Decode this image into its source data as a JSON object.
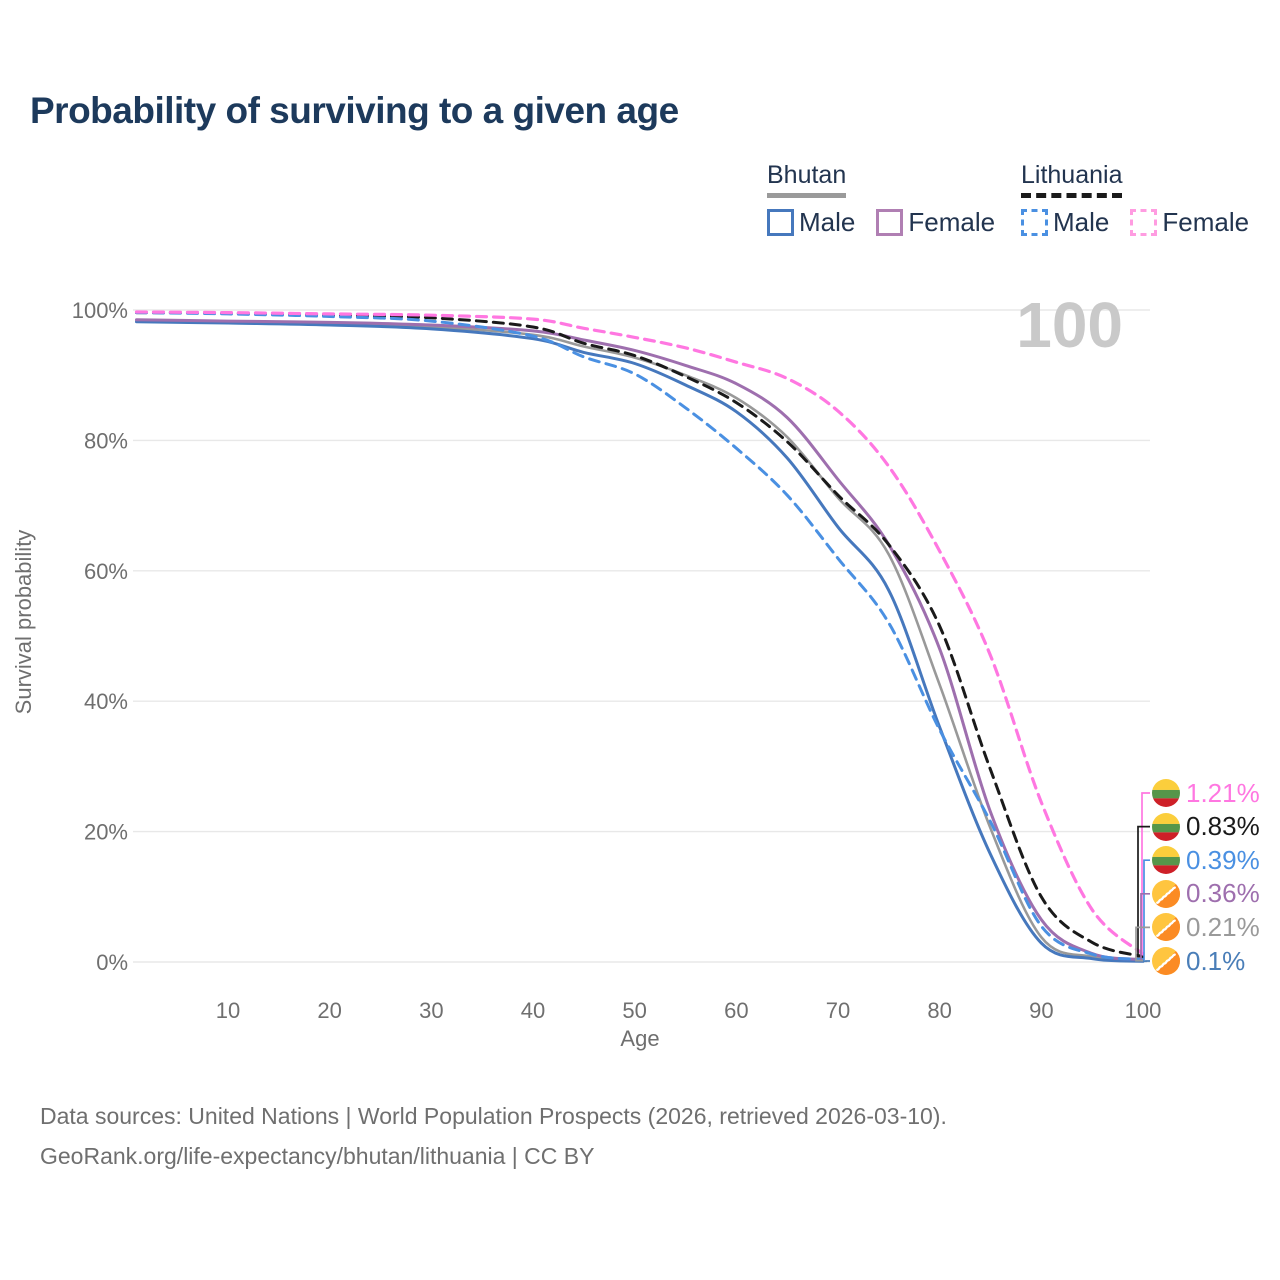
{
  "title": "Probability of surviving to a given age",
  "watermark_age": "100",
  "legend": {
    "groups": [
      {
        "country": "Bhutan",
        "line_style": "solid",
        "items": [
          {
            "label": "Male",
            "color": "#4678bd",
            "dashed": false
          },
          {
            "label": "Female",
            "color": "#b07fb3",
            "dashed": false
          }
        ]
      },
      {
        "country": "Lithuania",
        "line_style": "dashed",
        "items": [
          {
            "label": "Male",
            "color": "#4a90e2",
            "dashed": true
          },
          {
            "label": "Female",
            "color": "#ff9ce1",
            "dashed": true
          }
        ]
      }
    ]
  },
  "axes": {
    "x_label": "Age",
    "y_label": "Survival probability",
    "x_ticks": [
      10,
      20,
      30,
      40,
      50,
      60,
      70,
      80,
      90,
      100
    ],
    "y_ticks": [
      {
        "value": 100,
        "label": "100%"
      },
      {
        "value": 80,
        "label": "80%"
      },
      {
        "value": 60,
        "label": "60%"
      },
      {
        "value": 40,
        "label": "40%"
      },
      {
        "value": 20,
        "label": "20%"
      },
      {
        "value": 0,
        "label": "0%"
      }
    ],
    "xlim": [
      1,
      100
    ],
    "ylim": [
      0,
      100
    ],
    "grid": "horizontal"
  },
  "chart_data": {
    "type": "line",
    "title": "Probability of surviving to a given age",
    "xlabel": "Age",
    "ylabel": "Survival probability",
    "x": [
      1,
      10,
      20,
      30,
      40,
      45,
      50,
      55,
      60,
      65,
      70,
      75,
      80,
      85,
      90,
      95,
      100
    ],
    "series": [
      {
        "name": "Bhutan Total",
        "country": "Bhutan",
        "sex": "Total",
        "color": "#999999",
        "dashed": false,
        "width": 2.6,
        "values": [
          98.4,
          98.2,
          97.9,
          97.4,
          96.2,
          94.4,
          92.7,
          90.0,
          86.5,
          80.5,
          71.2,
          62.5,
          42.5,
          20.5,
          3.8,
          0.8,
          0.21
        ]
      },
      {
        "name": "Bhutan Male",
        "country": "Bhutan",
        "sex": "Male",
        "color": "#4678bd",
        "dashed": false,
        "width": 3,
        "values": [
          98.2,
          98.0,
          97.7,
          97.1,
          95.6,
          93.5,
          91.8,
          88.5,
          84.4,
          77.3,
          66.7,
          57.0,
          36.0,
          16.5,
          2.9,
          0.5,
          0.1
        ]
      },
      {
        "name": "Bhutan Female",
        "country": "Bhutan",
        "sex": "Female",
        "color": "#9e6fae",
        "dashed": false,
        "width": 3,
        "values": [
          98.5,
          98.3,
          98.1,
          97.7,
          96.8,
          95.4,
          93.8,
          91.5,
          88.7,
          83.5,
          74.0,
          64.0,
          48.0,
          23.0,
          6.5,
          1.3,
          0.36
        ]
      },
      {
        "name": "Lithuania Total",
        "country": "Lithuania",
        "sex": "Total",
        "color": "#1a1a1a",
        "dashed": true,
        "width": 3,
        "values": [
          99.6,
          99.5,
          99.2,
          98.8,
          97.4,
          94.9,
          93.0,
          89.8,
          85.8,
          79.8,
          71.6,
          64.0,
          51.5,
          29.5,
          10.0,
          3.0,
          0.83
        ]
      },
      {
        "name": "Lithuania Male",
        "country": "Lithuania",
        "sex": "Male",
        "color": "#4a90e2",
        "dashed": true,
        "width": 3,
        "values": [
          99.6,
          99.4,
          99.0,
          98.3,
          96.0,
          92.8,
          90.2,
          85.0,
          78.8,
          71.6,
          61.9,
          52.0,
          35.6,
          21.5,
          5.5,
          1.2,
          0.39
        ]
      },
      {
        "name": "Lithuania Female",
        "country": "Lithuania",
        "sex": "Female",
        "color": "#ff77e1",
        "dashed": true,
        "width": 3.2,
        "values": [
          99.7,
          99.6,
          99.4,
          99.2,
          98.6,
          97.2,
          95.8,
          94.2,
          92.0,
          89.5,
          84.5,
          76.0,
          63.0,
          47.0,
          24.5,
          8.0,
          1.21
        ]
      }
    ]
  },
  "end_labels": [
    {
      "value": "1.21%",
      "series": "Lithuania Female",
      "flag": "lithuania",
      "color": "#ff77e1"
    },
    {
      "value": "0.83%",
      "series": "Lithuania Total",
      "flag": "lithuania",
      "color": "#1a1a1a"
    },
    {
      "value": "0.39%",
      "series": "Lithuania Male",
      "flag": "lithuania",
      "color": "#4a90e2"
    },
    {
      "value": "0.36%",
      "series": "Bhutan Female",
      "flag": "bhutan",
      "color": "#9e6fae"
    },
    {
      "value": "0.21%",
      "series": "Bhutan Total",
      "flag": "bhutan",
      "color": "#9a9a9a"
    },
    {
      "value": "0.1%",
      "series": "Bhutan Male",
      "flag": "bhutan",
      "color": "#4a7eb8"
    }
  ],
  "footer": {
    "line1": "Data sources: United Nations | World Population Prospects (2026, retrieved 2026-03-10).",
    "line2": "GeoRank.org/life-expectancy/bhutan/lithuania | CC BY"
  },
  "colors": {
    "title": "#1d3a5c",
    "legend_text": "#22344f",
    "tick": "#6f6f6f",
    "axis_title": "#6f6f6f",
    "grid": "#e8e8e8",
    "watermark": "#c9c9c9",
    "footer": "#6f6f6f"
  }
}
